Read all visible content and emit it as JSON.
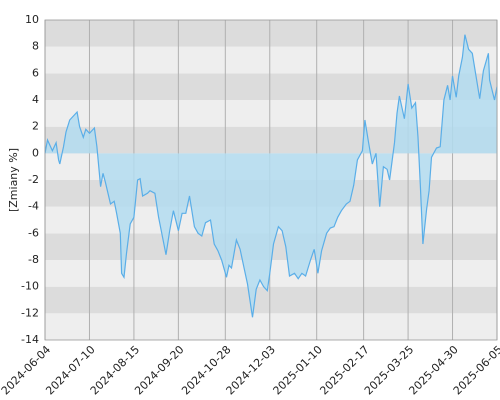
{
  "chart_data": {
    "type": "area",
    "y_label": "[Zmiany %]",
    "x": [
      "2024-06-04",
      "2024-06-06",
      "2024-06-10",
      "2024-06-13",
      "2024-06-15",
      "2024-06-16",
      "2024-06-19",
      "2024-06-21",
      "2024-06-24",
      "2024-06-27",
      "2024-06-30",
      "2024-07-02",
      "2024-07-05",
      "2024-07-07",
      "2024-07-10",
      "2024-07-14",
      "2024-07-16",
      "2024-07-19",
      "2024-07-21",
      "2024-07-23",
      "2024-07-27",
      "2024-07-30",
      "2024-08-01",
      "2024-08-04",
      "2024-08-05",
      "2024-08-07",
      "2024-08-09",
      "2024-08-12",
      "2024-08-15",
      "2024-08-18",
      "2024-08-20",
      "2024-08-22",
      "2024-08-26",
      "2024-08-28",
      "2024-09-01",
      "2024-09-04",
      "2024-09-07",
      "2024-09-10",
      "2024-09-13",
      "2024-09-16",
      "2024-09-20",
      "2024-09-23",
      "2024-09-26",
      "2024-09-29",
      "2024-10-03",
      "2024-10-06",
      "2024-10-09",
      "2024-10-12",
      "2024-10-16",
      "2024-10-19",
      "2024-10-22",
      "2024-10-25",
      "2024-10-29",
      "2024-10-31",
      "2024-11-02",
      "2024-11-06",
      "2024-11-09",
      "2024-11-12",
      "2024-11-15",
      "2024-11-19",
      "2024-11-22",
      "2024-11-25",
      "2024-11-28",
      "2024-12-01",
      "2024-12-03",
      "2024-12-06",
      "2024-12-10",
      "2024-12-13",
      "2024-12-16",
      "2024-12-19",
      "2024-12-23",
      "2024-12-26",
      "2024-12-29",
      "2025-01-01",
      "2025-01-05",
      "2025-01-08",
      "2025-01-11",
      "2025-01-14",
      "2025-01-18",
      "2025-01-21",
      "2025-01-24",
      "2025-01-27",
      "2025-01-30",
      "2025-02-03",
      "2025-02-06",
      "2025-02-09",
      "2025-02-12",
      "2025-02-16",
      "2025-02-18",
      "2025-02-21",
      "2025-02-24",
      "2025-02-27",
      "2025-03-02",
      "2025-03-05",
      "2025-03-08",
      "2025-03-10",
      "2025-03-14",
      "2025-03-16",
      "2025-03-18",
      "2025-03-22",
      "2025-03-25",
      "2025-03-28",
      "2025-03-31",
      "2025-04-02",
      "2025-04-04",
      "2025-04-06",
      "2025-04-09",
      "2025-04-11",
      "2025-04-13",
      "2025-04-17",
      "2025-04-20",
      "2025-04-23",
      "2025-04-26",
      "2025-04-28",
      "2025-04-30",
      "2025-05-03",
      "2025-05-05",
      "2025-05-08",
      "2025-05-10",
      "2025-05-13",
      "2025-05-16",
      "2025-05-19",
      "2025-05-22",
      "2025-05-25",
      "2025-05-29",
      "2025-05-30",
      "2025-06-03",
      "2025-06-05"
    ],
    "series": [
      {
        "color": "#5aaee8",
        "fill": "#b3dcf0",
        "values": [
          0,
          1.0,
          0.2,
          0.8,
          -0.5,
          -0.8,
          0.5,
          1.6,
          2.5,
          2.8,
          3.1,
          2.0,
          1.2,
          1.8,
          1.5,
          1.9,
          0.5,
          -2.5,
          -1.5,
          -2.2,
          -3.8,
          -3.6,
          -4.5,
          -6,
          -9,
          -9.3,
          -7.5,
          -5.3,
          -4.8,
          -2,
          -1.9,
          -3.2,
          -3.0,
          -2.8,
          -3.0,
          -4.8,
          -6.2,
          -7.6,
          -5.8,
          -4.3,
          -5.8,
          -4.5,
          -4.5,
          -3.2,
          -5.5,
          -6,
          -6.2,
          -5.2,
          -5,
          -6.8,
          -7.3,
          -8,
          -9.3,
          -8.4,
          -8.6,
          -6.5,
          -7.2,
          -8.5,
          -9.8,
          -12.3,
          -10.2,
          -9.5,
          -10,
          -10.3,
          -9,
          -6.8,
          -5.5,
          -5.8,
          -7,
          -9.2,
          -9,
          -9.4,
          -9,
          -9.2,
          -8,
          -7.2,
          -9,
          -7.3,
          -6,
          -5.6,
          -5.5,
          -4.8,
          -4.3,
          -3.8,
          -3.6,
          -2.4,
          -0.5,
          0.2,
          2.5,
          0.8,
          -0.8,
          0,
          -4,
          -1,
          -1.2,
          -2,
          0.8,
          3,
          4.3,
          2.6,
          5.2,
          3.4,
          3.8,
          1.2,
          -2.5,
          -6.8,
          -4.2,
          -2.8,
          -0.3,
          0.4,
          0.5,
          4,
          5.1,
          4,
          5.8,
          4.2,
          5.8,
          7.2,
          8.9,
          7.8,
          7.5,
          5.8,
          4.1,
          6.2,
          7.5,
          5.5,
          4.0,
          5.0
        ]
      }
    ],
    "xlim": [
      "2024-06-04",
      "2025-06-05"
    ],
    "xticks": [
      "2024-06-04",
      "2024-07-10",
      "2024-08-15",
      "2024-09-20",
      "2024-10-28",
      "2024-12-03",
      "2025-01-10",
      "2025-02-17",
      "2025-03-25",
      "2025-04-30",
      "2025-06-05"
    ],
    "ylim": [
      -14,
      10
    ],
    "yticks": [
      -14,
      -12,
      -10,
      -8,
      -6,
      -4,
      -2,
      0,
      2,
      4,
      6,
      8,
      10
    ],
    "band_colors": [
      "#eeeeee",
      "#dcdcdc"
    ],
    "grid": true
  }
}
